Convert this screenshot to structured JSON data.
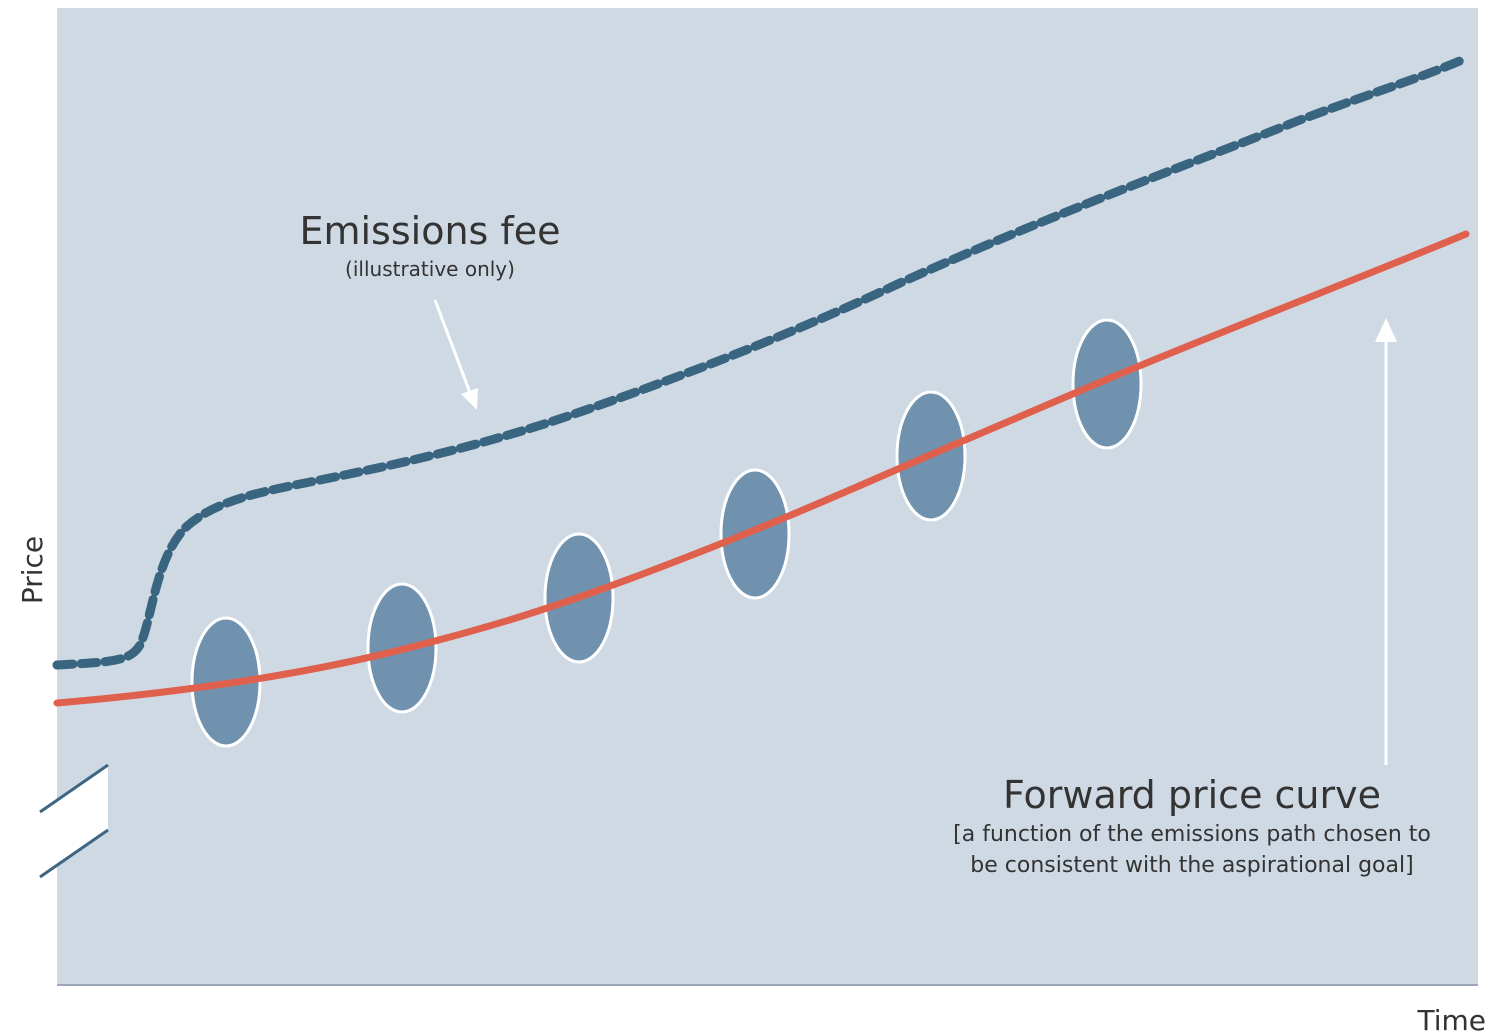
{
  "axes": {
    "y_label": "Price",
    "x_label": "Time"
  },
  "annotations": {
    "emissions_fee": {
      "title": "Emissions fee",
      "note": "(illustrative only)"
    },
    "forward_curve": {
      "title": "Forward price curve",
      "note_lines": [
        "[a function of the emissions path chosen to",
        "be consistent with the aspirational goal]"
      ]
    }
  }
}
